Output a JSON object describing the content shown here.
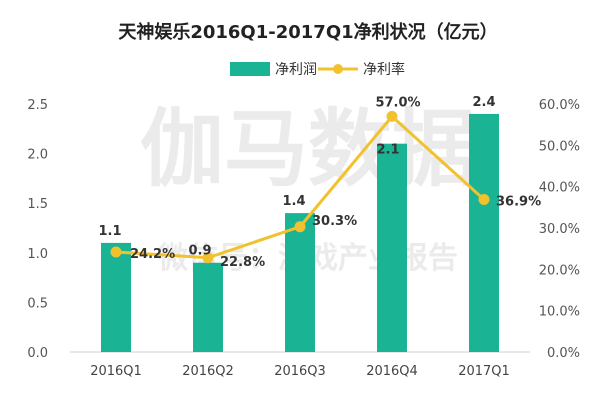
{
  "watermark": {
    "main": "伽马数据",
    "sub": "微信号：游戏产业报告"
  },
  "chart_data": {
    "type": "bar",
    "title": "天神娱乐2016Q1-2017Q1净利状况（亿元）",
    "categories": [
      "2016Q1",
      "2016Q2",
      "2016Q3",
      "2016Q4",
      "2017Q1"
    ],
    "series": [
      {
        "name": "净利润",
        "type": "bar",
        "axis": "left",
        "color": "#1ab394",
        "values": [
          1.1,
          0.9,
          1.4,
          2.1,
          2.4
        ],
        "labels": [
          "1.1",
          "0.9",
          "1.4",
          "2.1",
          "2.4"
        ]
      },
      {
        "name": "净利率",
        "type": "line",
        "axis": "right",
        "color": "#f2c12e",
        "values": [
          24.2,
          22.8,
          30.3,
          57.0,
          36.9
        ],
        "labels": [
          "24.2%",
          "22.8%",
          "30.3%",
          "57.0%",
          "36.9%"
        ]
      }
    ],
    "y_left": {
      "range": [
        0,
        2.5
      ],
      "ticks": [
        "0.0",
        "0.5",
        "1.0",
        "1.5",
        "2.0",
        "2.5"
      ]
    },
    "y_right": {
      "range": [
        0,
        60
      ],
      "ticks": [
        "0.0%",
        "10.0%",
        "20.0%",
        "30.0%",
        "40.0%",
        "50.0%",
        "60.0%"
      ]
    },
    "grid": false,
    "legend_position": "top-center"
  }
}
